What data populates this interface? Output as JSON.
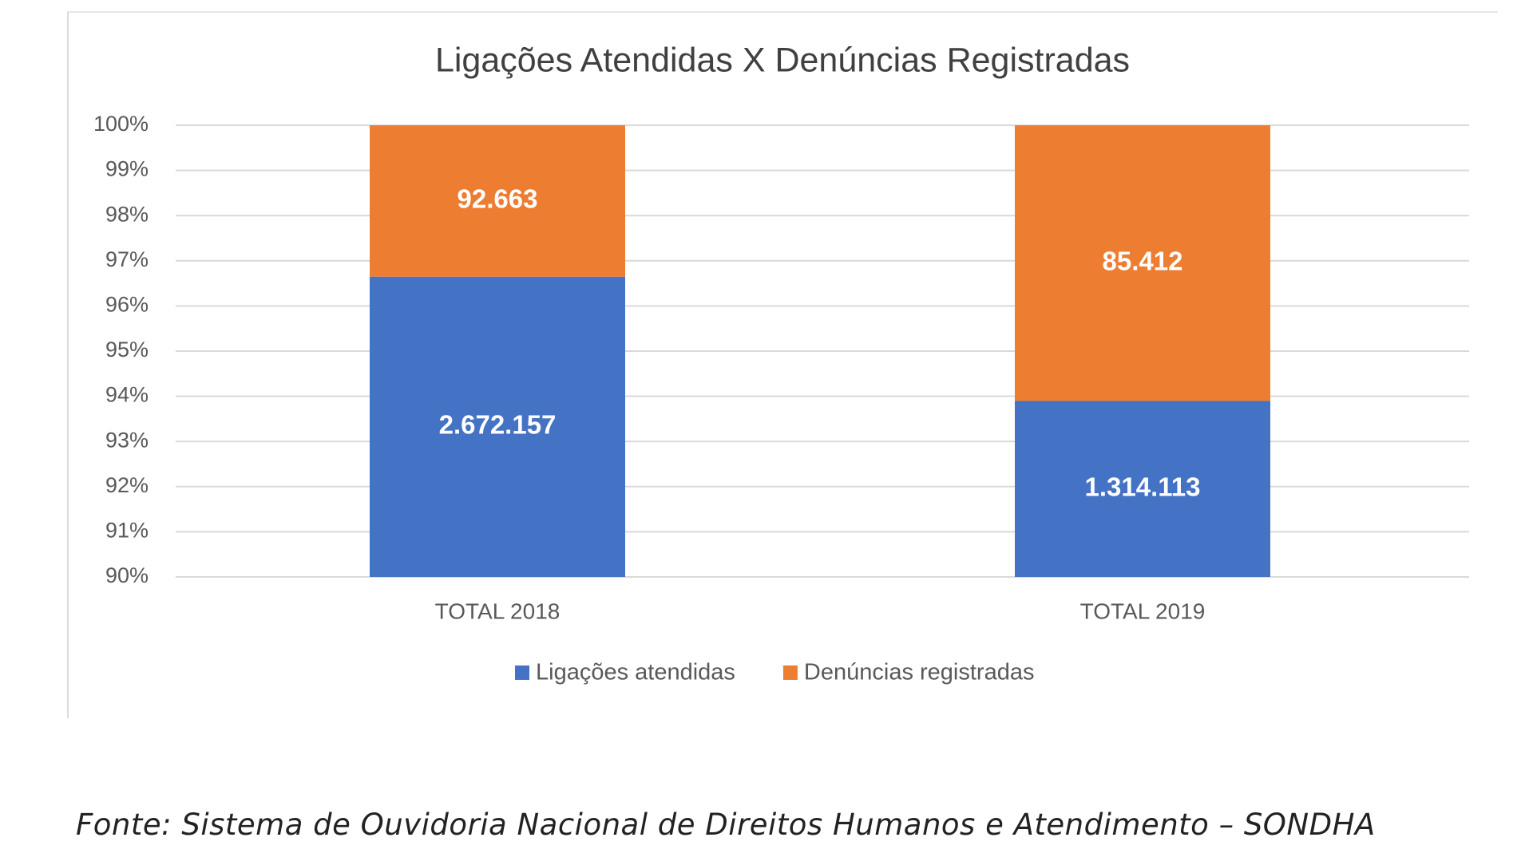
{
  "chart_data": {
    "type": "bar",
    "stacking": "percent",
    "title": "Ligações Atendidas X Denúncias Registradas",
    "categories": [
      "TOTAL 2018",
      "TOTAL 2019"
    ],
    "series": [
      {
        "name": "Ligações atendidas",
        "color": "#4472c4",
        "values": [
          2672157,
          1314113
        ],
        "value_labels": [
          "2.672.157",
          "1.314.113"
        ]
      },
      {
        "name": "Denúncias registradas",
        "color": "#ed7d31",
        "values": [
          92663,
          85412
        ],
        "value_labels": [
          "92.663",
          "85.412"
        ]
      }
    ],
    "ylim": [
      90,
      100
    ],
    "yticks": [
      {
        "value": 90,
        "label": "90%"
      },
      {
        "value": 91,
        "label": "91%"
      },
      {
        "value": 92,
        "label": "92%"
      },
      {
        "value": 93,
        "label": "93%"
      },
      {
        "value": 94,
        "label": "94%"
      },
      {
        "value": 95,
        "label": "95%"
      },
      {
        "value": 96,
        "label": "96%"
      },
      {
        "value": 97,
        "label": "97%"
      },
      {
        "value": 98,
        "label": "98%"
      },
      {
        "value": 99,
        "label": "99%"
      },
      {
        "value": 100,
        "label": "100%"
      }
    ],
    "grid": true,
    "legend": "bottom"
  },
  "source": "Fonte: Sistema de Ouvidoria Nacional de Direitos Humanos e Atendimento – SONDHA"
}
